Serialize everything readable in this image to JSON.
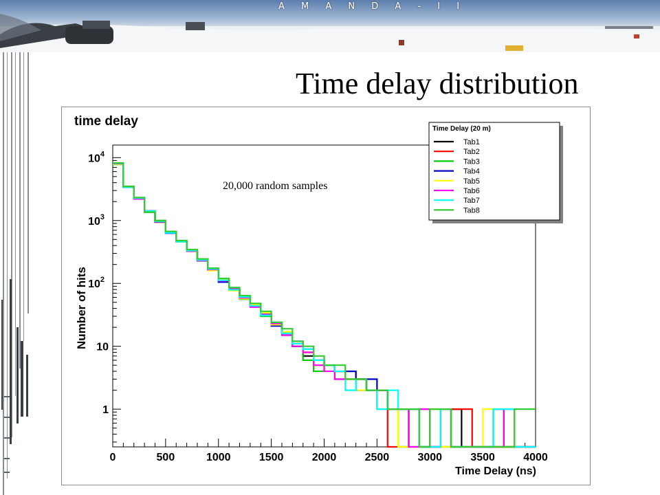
{
  "banner": {
    "title": "A M A N D A - I I"
  },
  "slide": {
    "title": "Time delay distribution"
  },
  "chart_data": {
    "type": "line",
    "title": "time delay",
    "xlabel": "Time Delay (ns)",
    "ylabel": "Number of hits",
    "xlim": [
      0,
      4000
    ],
    "xticks": [
      0,
      500,
      1000,
      1500,
      2000,
      2500,
      3000,
      3500,
      4000
    ],
    "ylog": true,
    "ylim_log10": [
      -0.6,
      4.2
    ],
    "yticks": [
      {
        "value": 1,
        "label": "1"
      },
      {
        "value": 10,
        "label": "10"
      },
      {
        "value": 100,
        "label": "10",
        "exp": "2"
      },
      {
        "value": 1000,
        "label": "10",
        "exp": "3"
      },
      {
        "value": 10000,
        "label": "10",
        "exp": "4"
      }
    ],
    "bin_width": 100,
    "annotation": "20,000 random samples",
    "legend_title": "Time Delay (20 m)",
    "legend_position": "top-right",
    "grid": false,
    "series": [
      {
        "name": "Tab1",
        "color": "#000000",
        "values": [
          8000,
          3400,
          2250,
          1380,
          960,
          650,
          465,
          335,
          232,
          168,
          111,
          79,
          60,
          43,
          32,
          23,
          16,
          10,
          7,
          5,
          5,
          4,
          4,
          3,
          2,
          2,
          1,
          1,
          1,
          0,
          0,
          1,
          1,
          0,
          0,
          0,
          0,
          0,
          0,
          0
        ]
      },
      {
        "name": "Tab2",
        "color": "#ff0000",
        "values": [
          8200,
          3450,
          2200,
          1400,
          940,
          640,
          475,
          325,
          238,
          162,
          113,
          78,
          58,
          45,
          31,
          22,
          15,
          11,
          8,
          6,
          5,
          4,
          3,
          3,
          2,
          1,
          0,
          0,
          1,
          1,
          0,
          0,
          1,
          1,
          0,
          0,
          0,
          0,
          0,
          0
        ]
      },
      {
        "name": "Tab3",
        "color": "#00cc00",
        "values": [
          7800,
          3500,
          2300,
          1350,
          1000,
          660,
          460,
          340,
          228,
          172,
          108,
          82,
          56,
          47,
          30,
          24,
          17,
          10,
          6,
          4,
          5,
          4,
          3,
          3,
          2,
          2,
          1,
          0,
          1,
          0,
          1,
          0,
          0,
          0,
          0,
          0,
          0,
          0,
          0,
          0
        ]
      },
      {
        "name": "Tab4",
        "color": "#0000cc",
        "values": [
          8100,
          3380,
          2280,
          1420,
          950,
          630,
          470,
          330,
          235,
          165,
          105,
          80,
          60,
          44,
          33,
          21,
          16,
          12,
          9,
          6,
          5,
          3,
          4,
          2,
          3,
          2,
          1,
          1,
          0,
          0,
          0,
          1,
          0,
          0,
          0,
          0,
          1,
          0,
          0,
          0
        ]
      },
      {
        "name": "Tab5",
        "color": "#ffff00",
        "values": [
          7900,
          3420,
          2250,
          1390,
          970,
          645,
          468,
          338,
          240,
          160,
          115,
          77,
          57,
          46,
          34,
          22,
          17,
          11,
          8,
          5,
          4,
          3,
          3,
          2,
          2,
          1,
          1,
          0,
          0,
          1,
          1,
          0,
          0,
          0,
          0,
          1,
          0,
          0,
          0,
          0
        ]
      },
      {
        "name": "Tab6",
        "color": "#ff00ff",
        "values": [
          8050,
          3460,
          2210,
          1370,
          955,
          655,
          472,
          328,
          230,
          166,
          110,
          81,
          59,
          42,
          32,
          23,
          15,
          10,
          8,
          5,
          4,
          3,
          3,
          3,
          2,
          2,
          1,
          1,
          0,
          1,
          0,
          1,
          0,
          0,
          0,
          0,
          0,
          1,
          0,
          0
        ]
      },
      {
        "name": "Tab7",
        "color": "#00ffff",
        "values": [
          8150,
          3390,
          2270,
          1410,
          965,
          638,
          462,
          332,
          236,
          170,
          112,
          79,
          61,
          44,
          31,
          24,
          16,
          11,
          9,
          6,
          5,
          4,
          2,
          3,
          2,
          1,
          2,
          1,
          1,
          0,
          0,
          1,
          0,
          0,
          0,
          0,
          1,
          1,
          0,
          0
        ]
      },
      {
        "name": "Tab8",
        "color": "#33cc33",
        "values": [
          8250,
          3480,
          2320,
          1360,
          990,
          670,
          480,
          345,
          245,
          175,
          120,
          86,
          64,
          48,
          36,
          24,
          19,
          12,
          10,
          7,
          5,
          5,
          3,
          3,
          2,
          2,
          1,
          1,
          1,
          0,
          1,
          1,
          0,
          0,
          0,
          0,
          0,
          0,
          1,
          1
        ]
      }
    ]
  }
}
